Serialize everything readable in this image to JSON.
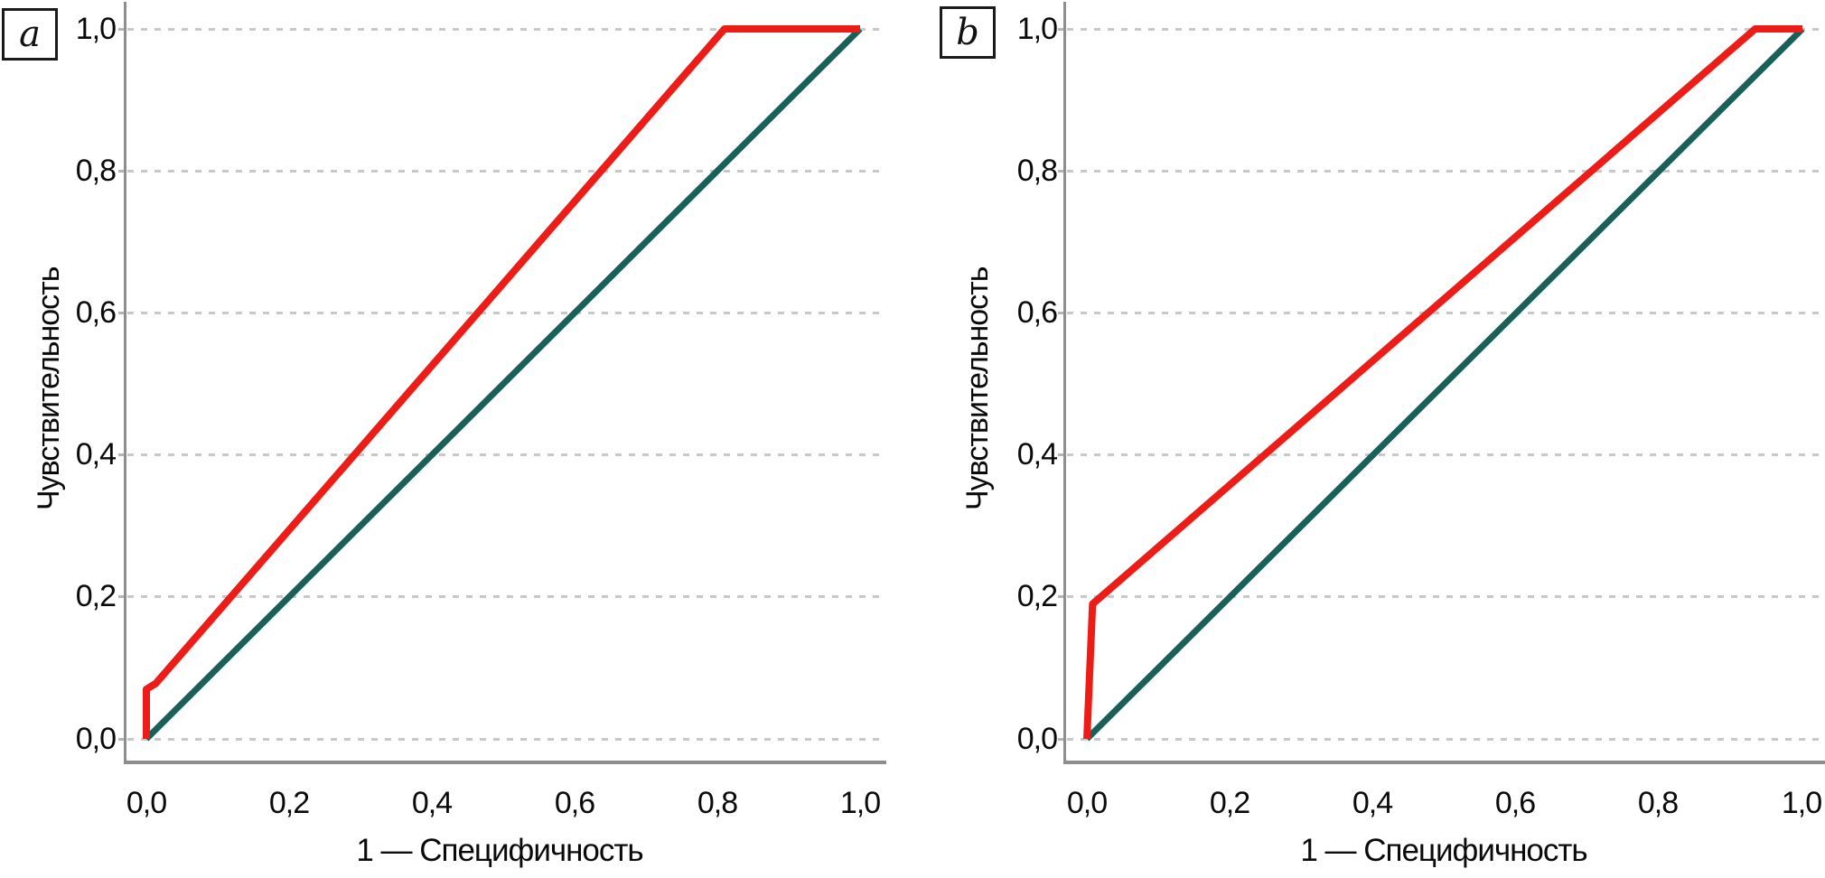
{
  "figure": {
    "panels": [
      {
        "label": "a",
        "y_axis_title": "Чувствительность",
        "x_axis_title": "1 — Специфичность",
        "y_tick_labels": [
          "1,0",
          "0,8",
          "0,6",
          "0,4",
          "0,2",
          "0,0"
        ],
        "x_tick_labels": [
          "0,0",
          "0,2",
          "0,4",
          "0,6",
          "0,8",
          "1,0"
        ]
      },
      {
        "label": "b",
        "y_axis_title": "Чувствительность",
        "x_axis_title": "1 — Специфичность",
        "y_tick_labels": [
          "1,0",
          "0,8",
          "0,6",
          "0,4",
          "0,2",
          "0,0"
        ],
        "x_tick_labels": [
          "0,0",
          "0,2",
          "0,4",
          "0,6",
          "0,8",
          "1,0"
        ]
      }
    ],
    "colors": {
      "roc_curve": "#ee1c16",
      "reference_line": "#186058",
      "gridline": "#c8c8c8",
      "axis": "#8e8e8e"
    }
  },
  "chart_data": [
    {
      "type": "line",
      "panel": "a",
      "title": "",
      "xlabel": "1 — Специфичность",
      "ylabel": "Чувствительность",
      "xlim": [
        0,
        1
      ],
      "ylim": [
        0,
        1
      ],
      "x_ticks": [
        0.0,
        0.2,
        0.4,
        0.6,
        0.8,
        1.0
      ],
      "y_ticks": [
        0.0,
        0.2,
        0.4,
        0.6,
        0.8,
        1.0
      ],
      "grid": "horizontal-dashed",
      "legend_position": "none",
      "series": [
        {
          "name": "reference-diagonal",
          "color": "#186058",
          "stroke_width": 7,
          "points": [
            [
              0,
              0
            ],
            [
              1,
              1
            ]
          ]
        },
        {
          "name": "roc-curve",
          "color": "#ee1c16",
          "stroke_width": 8,
          "points": [
            [
              0,
              0
            ],
            [
              0,
              0.07
            ],
            [
              0.013,
              0.078
            ],
            [
              0.81,
              1.0
            ],
            [
              1.0,
              1.0
            ]
          ]
        }
      ]
    },
    {
      "type": "line",
      "panel": "b",
      "title": "",
      "xlabel": "1 — Специфичность",
      "ylabel": "Чувствительность",
      "xlim": [
        0,
        1
      ],
      "ylim": [
        0,
        1
      ],
      "x_ticks": [
        0.0,
        0.2,
        0.4,
        0.6,
        0.8,
        1.0
      ],
      "y_ticks": [
        0.0,
        0.2,
        0.4,
        0.6,
        0.8,
        1.0
      ],
      "grid": "horizontal-dashed",
      "legend_position": "none",
      "series": [
        {
          "name": "reference-diagonal",
          "color": "#186058",
          "stroke_width": 7,
          "points": [
            [
              0,
              0
            ],
            [
              1,
              1
            ]
          ]
        },
        {
          "name": "roc-curve",
          "color": "#ee1c16",
          "stroke_width": 8,
          "points": [
            [
              0,
              0
            ],
            [
              0.008,
              0.19
            ],
            [
              0.934,
              1.0
            ],
            [
              1.0,
              1.0
            ]
          ]
        }
      ]
    }
  ]
}
